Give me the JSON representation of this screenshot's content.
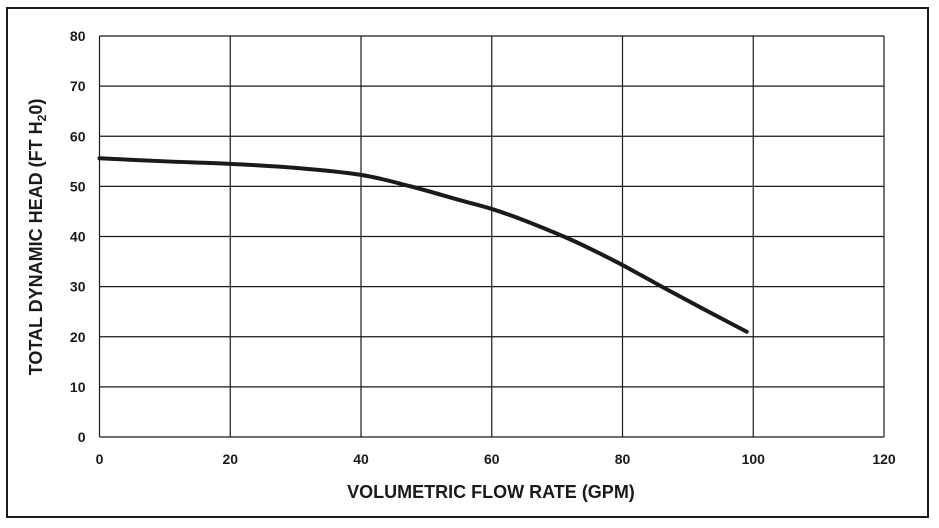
{
  "chart_data": {
    "type": "line",
    "title": "",
    "xlabel": "VOLUMETRIC FLOW RATE (GPM)",
    "ylabel_main": "TOTAL DYNAMIC HEAD  (FT H",
    "ylabel_sub": "2",
    "ylabel_end": "0)",
    "xlim": [
      0,
      120
    ],
    "ylim": [
      0,
      80
    ],
    "xticks": [
      0,
      20,
      40,
      60,
      80,
      100,
      120
    ],
    "yticks": [
      0,
      10,
      20,
      30,
      40,
      50,
      60,
      70,
      80
    ],
    "grid": true,
    "line_color": "#1a1a1a",
    "series": [
      {
        "x": [
          0,
          10,
          20,
          30,
          40,
          47.6,
          55,
          60,
          65,
          71,
          75,
          80,
          86,
          92,
          99
        ],
        "y": [
          55.6,
          55.0,
          54.5,
          53.7,
          52.3,
          50,
          47.3,
          45.5,
          43.2,
          40,
          37.6,
          34.3,
          30,
          25.8,
          21
        ]
      }
    ]
  }
}
